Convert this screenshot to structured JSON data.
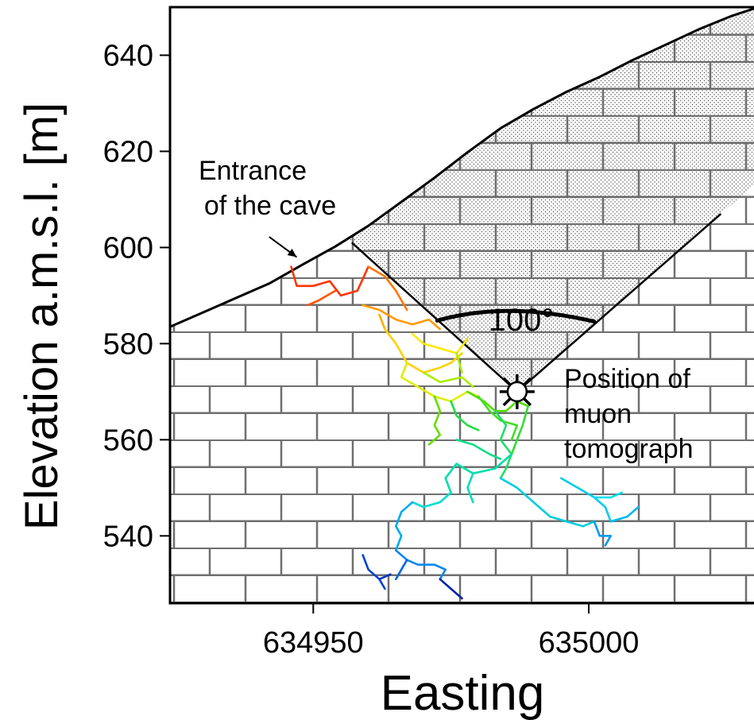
{
  "chart_data": {
    "type": "diagram",
    "xlabel": "Easting",
    "ylabel": "Elevation a.m.s.l. [m]",
    "xlim": [
      634924,
      635030
    ],
    "ylim": [
      526,
      650
    ],
    "x_ticks": [
      {
        "value": 634950,
        "label": "634950"
      },
      {
        "value": 635000,
        "label": "635000"
      }
    ],
    "y_ticks": [
      {
        "value": 640,
        "label": "640"
      },
      {
        "value": 620,
        "label": "620"
      },
      {
        "value": 600,
        "label": "600"
      },
      {
        "value": 580,
        "label": "580"
      },
      {
        "value": 560,
        "label": "560"
      },
      {
        "value": 540,
        "label": "540"
      }
    ],
    "surface_profile": [
      [
        634924,
        583.5
      ],
      [
        634930,
        586.5
      ],
      [
        634936,
        589.5
      ],
      [
        634942,
        592.5
      ],
      [
        634948,
        596.4
      ],
      [
        634954,
        600.2
      ],
      [
        634960,
        604.5
      ],
      [
        634966,
        609.5
      ],
      [
        634972,
        614.5
      ],
      [
        634978,
        619.8
      ],
      [
        634984,
        624.8
      ],
      [
        634990,
        628.8
      ],
      [
        634996,
        632.4
      ],
      [
        635002,
        635.5
      ],
      [
        635008,
        639.0
      ],
      [
        635014,
        642.2
      ],
      [
        635020,
        645.4
      ],
      [
        635026,
        648.2
      ],
      [
        635030,
        649.7
      ]
    ],
    "tomograph": {
      "x": 634987,
      "y": 570
    },
    "field_of_view": {
      "angle_label": "100°",
      "left_end": [
        634957,
        601
      ],
      "right_end": [
        635024,
        607
      ],
      "arc": [
        [
          634972.5,
          584.8
        ],
        [
          634981,
          587.5
        ],
        [
          634990,
          587.5
        ],
        [
          635001,
          584.6
        ]
      ]
    },
    "annotations": {
      "entrance": {
        "lines": [
          "Entrance",
          "of the cave"
        ],
        "arrow_from": [
          634942,
          602.2
        ],
        "arrow_to": [
          634947,
          598
        ]
      },
      "tomograph": {
        "lines": [
          "Position of",
          "muon",
          "tomograph"
        ]
      }
    },
    "cave_passages": [
      {
        "color": "#FF3300",
        "points": [
          [
            634946,
            596
          ],
          [
            634947,
            592
          ],
          [
            634950,
            592
          ],
          [
            634953,
            593
          ],
          [
            634955,
            590
          ],
          [
            634958,
            591
          ],
          [
            634960,
            596
          ]
        ]
      },
      {
        "color": "#FF5500",
        "points": [
          [
            634954,
            591
          ],
          [
            634951,
            589
          ],
          [
            634949,
            588
          ]
        ]
      },
      {
        "color": "#FF7700",
        "points": [
          [
            634960,
            596
          ],
          [
            634963,
            594
          ],
          [
            634965,
            591
          ],
          [
            634967,
            587
          ]
        ]
      },
      {
        "color": "#FF9900",
        "points": [
          [
            634959,
            588
          ],
          [
            634962,
            587
          ],
          [
            634965,
            585
          ],
          [
            634968,
            584
          ],
          [
            634971,
            585
          ],
          [
            634973,
            583
          ]
        ]
      },
      {
        "color": "#FFAA00",
        "points": [
          [
            634962,
            586
          ],
          [
            634963,
            583
          ]
        ]
      },
      {
        "color": "#FFD000",
        "points": [
          [
            634963,
            583
          ],
          [
            634965,
            580
          ],
          [
            634967,
            576
          ],
          [
            634970,
            574
          ],
          [
            634973,
            575
          ],
          [
            634975,
            576
          ],
          [
            634977,
            578
          ]
        ]
      },
      {
        "color": "#FFE800",
        "points": [
          [
            634968,
            582
          ],
          [
            634970,
            580
          ],
          [
            634973,
            579
          ],
          [
            634976,
            578
          ],
          [
            634978,
            581
          ]
        ]
      },
      {
        "color": "#DDEE00",
        "points": [
          [
            634967,
            576
          ],
          [
            634966,
            573
          ],
          [
            634969,
            571
          ],
          [
            634972,
            569
          ],
          [
            634975,
            568
          ],
          [
            634978,
            570
          ],
          [
            634980,
            569
          ]
        ]
      },
      {
        "color": "#AAEE00",
        "points": [
          [
            634970,
            574
          ],
          [
            634973,
            572
          ],
          [
            634977,
            573
          ],
          [
            634979,
            571
          ]
        ]
      },
      {
        "color": "#AAEE00",
        "points": [
          [
            634976,
            578
          ],
          [
            634977,
            574
          ]
        ]
      },
      {
        "color": "#66DD00",
        "points": [
          [
            634972,
            569
          ],
          [
            634973,
            566
          ],
          [
            634972,
            563
          ],
          [
            634973,
            561
          ],
          [
            634971,
            559
          ]
        ]
      },
      {
        "color": "#55DD00",
        "points": [
          [
            634978,
            570
          ],
          [
            634981,
            568
          ],
          [
            634983,
            566
          ],
          [
            634985,
            566
          ],
          [
            634987,
            568
          ],
          [
            634989,
            567
          ]
        ]
      },
      {
        "color": "#44DD22",
        "points": [
          [
            634980,
            569
          ],
          [
            634982,
            566
          ],
          [
            634984,
            564
          ],
          [
            634987,
            563
          ],
          [
            634986,
            560
          ]
        ]
      },
      {
        "color": "#33DD33",
        "points": [
          [
            634989,
            567
          ],
          [
            634988,
            563
          ],
          [
            634987,
            560
          ],
          [
            634986,
            557
          ]
        ]
      },
      {
        "color": "#22DD44",
        "points": [
          [
            634975,
            568
          ],
          [
            634976,
            565
          ],
          [
            634978,
            563
          ],
          [
            634980,
            562
          ]
        ]
      },
      {
        "color": "#22DD66",
        "points": [
          [
            634983,
            566
          ],
          [
            634985,
            563
          ],
          [
            634984,
            560
          ],
          [
            634986,
            557
          ],
          [
            634985,
            554
          ],
          [
            634984,
            552
          ]
        ]
      },
      {
        "color": "#11DD88",
        "points": [
          [
            634976,
            560
          ],
          [
            634979,
            559
          ],
          [
            634982,
            557
          ],
          [
            634984,
            556
          ]
        ]
      },
      {
        "color": "#00DDAA",
        "points": [
          [
            634986,
            557
          ],
          [
            634983,
            554
          ],
          [
            634979,
            553
          ],
          [
            634976,
            555
          ],
          [
            634974,
            552
          ],
          [
            634975,
            549
          ]
        ]
      },
      {
        "color": "#00DDBB",
        "points": [
          [
            634979,
            553
          ],
          [
            634978,
            550
          ],
          [
            634979,
            547
          ]
        ]
      },
      {
        "color": "#00DDCC",
        "points": [
          [
            634975,
            549
          ],
          [
            634973,
            547
          ],
          [
            634970,
            546
          ],
          [
            634968,
            547
          ]
        ]
      },
      {
        "color": "#00CCDD",
        "points": [
          [
            634984,
            552
          ],
          [
            634987,
            550
          ],
          [
            634990,
            547
          ],
          [
            634993,
            544
          ],
          [
            634996,
            543
          ],
          [
            634999,
            542
          ],
          [
            635001,
            543
          ]
        ]
      },
      {
        "color": "#00CCEE",
        "points": [
          [
            634995,
            552
          ],
          [
            634998,
            550
          ],
          [
            635001,
            548
          ],
          [
            635003,
            546
          ],
          [
            635004,
            543
          ]
        ]
      },
      {
        "color": "#00DDEE",
        "points": [
          [
            635001,
            548
          ],
          [
            635004,
            548
          ],
          [
            635006,
            549
          ]
        ]
      },
      {
        "color": "#00BBEE",
        "points": [
          [
            635004,
            543
          ],
          [
            635007,
            544
          ],
          [
            635009,
            546
          ]
        ]
      },
      {
        "color": "#00AAEE",
        "points": [
          [
            634968,
            547
          ],
          [
            634966,
            545
          ],
          [
            634965,
            542
          ],
          [
            634966,
            540
          ],
          [
            634965,
            537
          ]
        ]
      },
      {
        "color": "#0099EE",
        "points": [
          [
            635001,
            543
          ],
          [
            635002,
            540
          ],
          [
            635004,
            540
          ],
          [
            635003,
            538
          ]
        ]
      },
      {
        "color": "#0088EE",
        "points": [
          [
            634965,
            537
          ],
          [
            634967,
            535
          ],
          [
            634969,
            534
          ],
          [
            634972,
            534
          ],
          [
            634974,
            533
          ],
          [
            634973,
            531
          ]
        ]
      },
      {
        "color": "#0066DD",
        "points": [
          [
            634967,
            535
          ],
          [
            634966,
            533
          ],
          [
            634965,
            531
          ]
        ]
      },
      {
        "color": "#0044CC",
        "points": [
          [
            634959,
            536
          ],
          [
            634960,
            533
          ],
          [
            634962,
            531
          ],
          [
            634963,
            529
          ]
        ]
      },
      {
        "color": "#0033BB",
        "points": [
          [
            634962,
            531
          ],
          [
            634964,
            532
          ]
        ]
      },
      {
        "color": "#0022AA",
        "points": [
          [
            634973,
            531
          ],
          [
            634975,
            529
          ],
          [
            634977,
            527
          ]
        ]
      }
    ]
  }
}
